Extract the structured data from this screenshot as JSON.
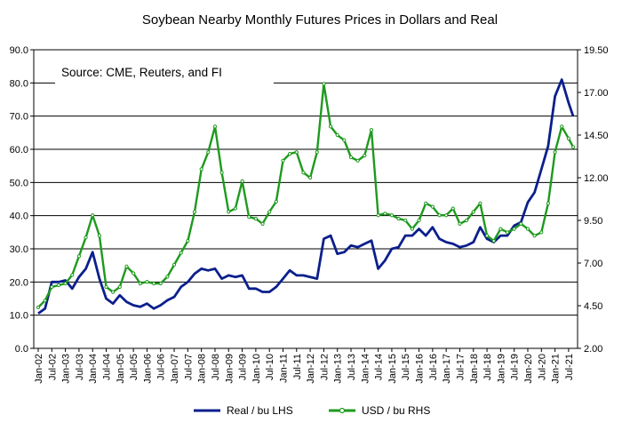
{
  "chart_data": {
    "type": "line",
    "title": "Soybean Nearby Monthly Futures Prices in Dollars and Real",
    "annotation": "Source: CME, Reuters, and FI",
    "x_tick_labels": [
      "Jan-02",
      "Jul-02",
      "Jan-03",
      "Jul-03",
      "Jan-04",
      "Jul-04",
      "Jan-05",
      "Jul-05",
      "Jan-06",
      "Jul-06",
      "Jan-07",
      "Jul-07",
      "Jan-08",
      "Jul-08",
      "Jan-09",
      "Jul-09",
      "Jan-10",
      "Jul-10",
      "Jan-11",
      "Jul-11",
      "Jan-12",
      "Jul-12",
      "Jan-13",
      "Jul-13",
      "Jan-14",
      "Jul-14",
      "Jan-15",
      "Jul-15",
      "Jan-16",
      "Jul-16",
      "Jan-17",
      "Jul-17",
      "Jan-18",
      "Jul-18",
      "Jan-19",
      "Jul-19",
      "Jan-20",
      "Jul-20",
      "Jan-21",
      "Jul-21"
    ],
    "y_left": {
      "min": 0,
      "max": 90,
      "ticks": [
        0,
        10,
        20,
        30,
        40,
        50,
        60,
        70,
        80,
        90
      ],
      "tick_labels": [
        "0.0",
        "10.0",
        "20.0",
        "30.0",
        "40.0",
        "50.0",
        "60.0",
        "70.0",
        "80.0",
        "90.0"
      ]
    },
    "y_right": {
      "min": 2.0,
      "max": 19.5,
      "ticks": [
        2.0,
        4.5,
        7.0,
        9.5,
        12.0,
        14.5,
        17.0,
        19.5
      ],
      "tick_labels": [
        "2.00",
        "4.50",
        "7.00",
        "9.50",
        "12.00",
        "14.50",
        "17.00",
        "19.50"
      ]
    },
    "grid": "horizontal",
    "legend_position": "bottom",
    "series": [
      {
        "name": "Real / bu    LHS",
        "axis": "left",
        "color": "#0b1f8c",
        "x": [
          "Jan-02",
          "Apr-02",
          "Jul-02",
          "Oct-02",
          "Jan-03",
          "Apr-03",
          "Jul-03",
          "Oct-03",
          "Jan-04",
          "Apr-04",
          "Jul-04",
          "Oct-04",
          "Jan-05",
          "Apr-05",
          "Jul-05",
          "Oct-05",
          "Jan-06",
          "Apr-06",
          "Jul-06",
          "Oct-06",
          "Jan-07",
          "Apr-07",
          "Jul-07",
          "Oct-07",
          "Jan-08",
          "Apr-08",
          "Jul-08",
          "Oct-08",
          "Jan-09",
          "Apr-09",
          "Jul-09",
          "Oct-09",
          "Jan-10",
          "Apr-10",
          "Jul-10",
          "Oct-10",
          "Jan-11",
          "Apr-11",
          "Jul-11",
          "Oct-11",
          "Jan-12",
          "Apr-12",
          "Jul-12",
          "Oct-12",
          "Jan-13",
          "Apr-13",
          "Jul-13",
          "Oct-13",
          "Jan-14",
          "Apr-14",
          "Jul-14",
          "Oct-14",
          "Jan-15",
          "Apr-15",
          "Jul-15",
          "Oct-15",
          "Jan-16",
          "Apr-16",
          "Jul-16",
          "Oct-16",
          "Jan-17",
          "Apr-17",
          "Jul-17",
          "Oct-17",
          "Jan-18",
          "Apr-18",
          "Jul-18",
          "Oct-18",
          "Jan-19",
          "Apr-19",
          "Jul-19",
          "Oct-19",
          "Jan-20",
          "Apr-20",
          "Jul-20",
          "Oct-20",
          "Jan-21",
          "Apr-21",
          "Jul-21",
          "Sep-21"
        ],
        "values": [
          10.5,
          12.0,
          20.0,
          20.0,
          20.5,
          18.0,
          21.5,
          24.0,
          29.0,
          21.0,
          15.0,
          13.5,
          16.0,
          14.0,
          13.0,
          12.5,
          13.5,
          12.0,
          13.0,
          14.5,
          15.5,
          18.5,
          20.0,
          22.5,
          24.0,
          23.5,
          24.0,
          21.0,
          22.0,
          21.5,
          22.0,
          18.0,
          18.0,
          17.0,
          17.0,
          18.5,
          21.0,
          23.5,
          22.0,
          22.0,
          21.5,
          21.0,
          33.0,
          34.0,
          28.5,
          29.0,
          31.0,
          30.5,
          31.5,
          32.5,
          24.0,
          26.5,
          30.0,
          30.5,
          34.0,
          34.0,
          36.0,
          34.0,
          36.5,
          33.0,
          32.0,
          31.5,
          30.5,
          31.0,
          32.0,
          36.5,
          33.0,
          32.0,
          34.0,
          34.0,
          37.0,
          38.0,
          44.0,
          47.0,
          54.0,
          61.0,
          76.0,
          81.0,
          74.0,
          70.0
        ]
      },
      {
        "name": "USD / bu    RHS",
        "axis": "right",
        "color": "#1e9a1e",
        "x": [
          "Jan-02",
          "Apr-02",
          "Jul-02",
          "Oct-02",
          "Jan-03",
          "Apr-03",
          "Jul-03",
          "Oct-03",
          "Jan-04",
          "Apr-04",
          "Jul-04",
          "Oct-04",
          "Jan-05",
          "Apr-05",
          "Jul-05",
          "Oct-05",
          "Jan-06",
          "Apr-06",
          "Jul-06",
          "Oct-06",
          "Jan-07",
          "Apr-07",
          "Jul-07",
          "Oct-07",
          "Jan-08",
          "Apr-08",
          "Jul-08",
          "Oct-08",
          "Jan-09",
          "Apr-09",
          "Jul-09",
          "Oct-09",
          "Jan-10",
          "Apr-10",
          "Jul-10",
          "Oct-10",
          "Jan-11",
          "Apr-11",
          "Jul-11",
          "Oct-11",
          "Jan-12",
          "Apr-12",
          "Jul-12",
          "Oct-12",
          "Jan-13",
          "Apr-13",
          "Jul-13",
          "Oct-13",
          "Jan-14",
          "Apr-14",
          "Jul-14",
          "Oct-14",
          "Jan-15",
          "Apr-15",
          "Jul-15",
          "Oct-15",
          "Jan-16",
          "Apr-16",
          "Jul-16",
          "Oct-16",
          "Jan-17",
          "Apr-17",
          "Jul-17",
          "Oct-17",
          "Jan-18",
          "Apr-18",
          "Jul-18",
          "Oct-18",
          "Jan-19",
          "Apr-19",
          "Jul-19",
          "Oct-19",
          "Jan-20",
          "Apr-20",
          "Jul-20",
          "Oct-20",
          "Jan-21",
          "Apr-21",
          "Jul-21",
          "Sep-21"
        ],
        "values": [
          4.4,
          4.8,
          5.6,
          5.7,
          5.8,
          6.3,
          7.4,
          8.5,
          9.8,
          8.6,
          5.6,
          5.3,
          5.6,
          6.8,
          6.4,
          5.8,
          5.9,
          5.8,
          5.8,
          6.2,
          6.9,
          7.6,
          8.3,
          10.0,
          12.5,
          13.5,
          15.0,
          12.3,
          10.0,
          10.2,
          11.8,
          9.7,
          9.6,
          9.3,
          10.0,
          10.6,
          13.0,
          13.4,
          13.5,
          12.3,
          12.0,
          13.5,
          17.5,
          15.0,
          14.5,
          14.2,
          13.2,
          13.0,
          13.3,
          14.8,
          9.8,
          9.9,
          9.8,
          9.6,
          9.5,
          9.0,
          9.5,
          10.5,
          10.3,
          9.8,
          9.8,
          10.2,
          9.3,
          9.5,
          10.0,
          10.5,
          8.6,
          8.3,
          9.0,
          8.8,
          9.0,
          9.3,
          9.0,
          8.6,
          8.8,
          10.5,
          13.5,
          15.0,
          14.3,
          13.8
        ]
      }
    ]
  }
}
